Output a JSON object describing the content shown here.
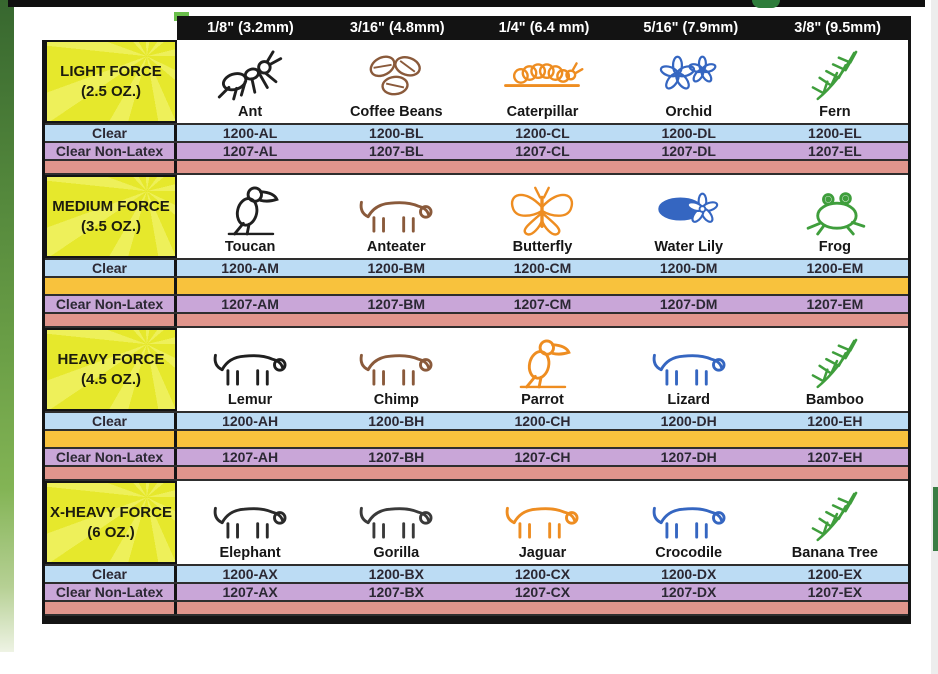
{
  "header": {
    "sizes": [
      "1/8\" (3.2mm)",
      "3/16\" (4.8mm)",
      "1/4\" (6.4 mm)",
      "5/16\" (7.9mm)",
      "3/8\" (9.5mm)"
    ]
  },
  "row_labels": {
    "clear": "Clear",
    "non_latex": "Clear Non-Latex"
  },
  "colors": {
    "clear_row": "#bcdcf4",
    "non_latex_row": "#c9a6d8",
    "separator_row": "#e0958c",
    "orange_spacer_row": "#f8c23d",
    "force_cell": "#e6e82c",
    "header_bar": "#131313",
    "header_text": "#ffffff",
    "code_text": "#2b2833",
    "left_decoration_green": "#6ca047"
  },
  "blocks": [
    {
      "force": "LIGHT FORCE",
      "oz": "(2.5 OZ.)",
      "orange_spacer": false,
      "products": [
        {
          "label": "Ant",
          "icon": "ant-icon",
          "shape": "ant",
          "color": "#1f1f1f"
        },
        {
          "label": "Coffee Beans",
          "icon": "coffee-beans-icon",
          "shape": "beans",
          "color": "#8a5a3b"
        },
        {
          "label": "Caterpillar",
          "icon": "caterpillar-icon",
          "shape": "caterpillar",
          "color": "#ee8d21"
        },
        {
          "label": "Orchid",
          "icon": "orchid-icon",
          "shape": "flower",
          "color": "#3566c1"
        },
        {
          "label": "Fern",
          "icon": "fern-icon",
          "shape": "fern",
          "color": "#3f9e3c"
        }
      ],
      "clear_codes": [
        "1200-AL",
        "1200-BL",
        "1200-CL",
        "1200-DL",
        "1200-EL"
      ],
      "non_latex_codes": [
        "1207-AL",
        "1207-BL",
        "1207-CL",
        "1207-DL",
        "1207-EL"
      ]
    },
    {
      "force": "MEDIUM FORCE",
      "oz": "(3.5 OZ.)",
      "orange_spacer": true,
      "products": [
        {
          "label": "Toucan",
          "icon": "toucan-icon",
          "shape": "bird",
          "color": "#1f1f1f"
        },
        {
          "label": "Anteater",
          "icon": "anteater-icon",
          "shape": "quad",
          "color": "#8a5a3b"
        },
        {
          "label": "Butterfly",
          "icon": "butterfly-icon",
          "shape": "butterfly",
          "color": "#ee8d21"
        },
        {
          "label": "Water Lily",
          "icon": "water-lily-icon",
          "shape": "lily",
          "color": "#3566c1"
        },
        {
          "label": "Frog",
          "icon": "frog-icon",
          "shape": "frog",
          "color": "#3f9e3c"
        }
      ],
      "clear_codes": [
        "1200-AM",
        "1200-BM",
        "1200-CM",
        "1200-DM",
        "1200-EM"
      ],
      "non_latex_codes": [
        "1207-AM",
        "1207-BM",
        "1207-CM",
        "1207-DM",
        "1207-EM"
      ]
    },
    {
      "force": "HEAVY FORCE",
      "oz": "(4.5 OZ.)",
      "orange_spacer": true,
      "products": [
        {
          "label": "Lemur",
          "icon": "lemur-icon",
          "shape": "quad",
          "color": "#1f1f1f"
        },
        {
          "label": "Chimp",
          "icon": "chimp-icon",
          "shape": "quad",
          "color": "#8a5a3b"
        },
        {
          "label": "Parrot",
          "icon": "parrot-icon",
          "shape": "bird",
          "color": "#ee8d21"
        },
        {
          "label": "Lizard",
          "icon": "lizard-icon",
          "shape": "quad",
          "color": "#3566c1"
        },
        {
          "label": "Bamboo",
          "icon": "bamboo-icon",
          "shape": "fern",
          "color": "#3f9e3c"
        }
      ],
      "clear_codes": [
        "1200-AH",
        "1200-BH",
        "1200-CH",
        "1200-DH",
        "1200-EH"
      ],
      "non_latex_codes": [
        "1207-AH",
        "1207-BH",
        "1207-CH",
        "1207-DH",
        "1207-EH"
      ]
    },
    {
      "force": "X-HEAVY FORCE",
      "oz": "(6 OZ.)",
      "orange_spacer": false,
      "products": [
        {
          "label": "Elephant",
          "icon": "elephant-icon",
          "shape": "quad",
          "color": "#2a2a2a"
        },
        {
          "label": "Gorilla",
          "icon": "gorilla-icon",
          "shape": "quad",
          "color": "#3a3a3a"
        },
        {
          "label": "Jaguar",
          "icon": "jaguar-icon",
          "shape": "quad",
          "color": "#ee8d21"
        },
        {
          "label": "Crocodile",
          "icon": "crocodile-icon",
          "shape": "quad",
          "color": "#3566c1"
        },
        {
          "label": "Banana Tree",
          "icon": "banana-tree-icon",
          "shape": "fern",
          "color": "#3f9e3c"
        }
      ],
      "clear_codes": [
        "1200-AX",
        "1200-BX",
        "1200-CX",
        "1200-DX",
        "1200-EX"
      ],
      "non_latex_codes": [
        "1207-AX",
        "1207-BX",
        "1207-CX",
        "1207-DX",
        "1207-EX"
      ]
    }
  ]
}
